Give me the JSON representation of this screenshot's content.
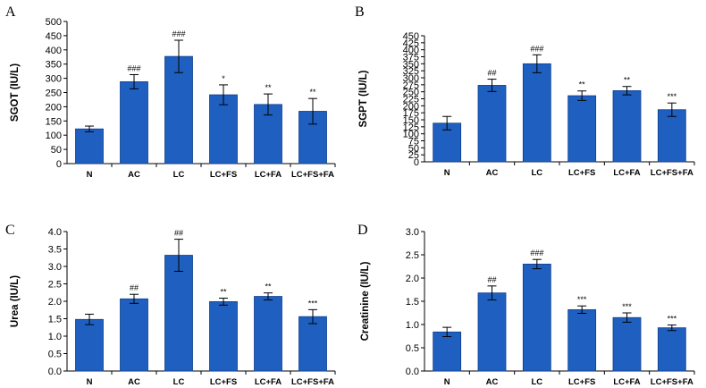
{
  "chart_data": [
    {
      "panel": "A",
      "type": "bar",
      "ylabel": "SGOT (IU/L)",
      "ylim": [
        0,
        500
      ],
      "yticks": [
        0,
        50,
        100,
        150,
        200,
        250,
        300,
        350,
        400,
        450,
        500
      ],
      "categories": [
        "N",
        "AC",
        "LC",
        "LC+FS",
        "LC+FA",
        "LC+FS+FA"
      ],
      "values": [
        122,
        288,
        377,
        242,
        208,
        184
      ],
      "errors": [
        10,
        25,
        57,
        35,
        37,
        45
      ],
      "annotations": [
        "",
        "###",
        "###",
        "*",
        "**",
        "**"
      ]
    },
    {
      "panel": "B",
      "type": "bar",
      "ylabel": "SGPT (IU/L)",
      "ylim": [
        0,
        450
      ],
      "yticks": [
        0,
        25,
        50,
        75,
        100,
        125,
        150,
        175,
        200,
        225,
        250,
        275,
        300,
        325,
        350,
        375,
        400,
        425,
        450
      ],
      "categories": [
        "N",
        "AC",
        "LC",
        "LC+FS",
        "LC+FA",
        "LC+FS+FA"
      ],
      "values": [
        138,
        273,
        350,
        236,
        254,
        186
      ],
      "errors": [
        24,
        22,
        32,
        17,
        15,
        24
      ],
      "annotations": [
        "",
        "##",
        "###",
        "**",
        "**",
        "***"
      ]
    },
    {
      "panel": "C",
      "type": "bar",
      "ylabel": "Urea (IU/L)",
      "ylim": [
        0,
        4.0
      ],
      "yticks": [
        "0.0",
        "0.5",
        "1.0",
        "1.5",
        "2.0",
        "2.5",
        "3.0",
        "3.5",
        "4.0"
      ],
      "categories": [
        "N",
        "AC",
        "LC",
        "LC+FS",
        "LC+FA",
        "LC+FS+FA"
      ],
      "values": [
        1.48,
        2.07,
        3.32,
        1.99,
        2.14,
        1.56
      ],
      "errors": [
        0.15,
        0.13,
        0.46,
        0.1,
        0.1,
        0.2
      ],
      "annotations": [
        "",
        "##",
        "##",
        "**",
        "**",
        "***"
      ]
    },
    {
      "panel": "D",
      "type": "bar",
      "ylabel": "Creatinine (IU/L)",
      "ylim": [
        0,
        3.0
      ],
      "yticks": [
        "0.0",
        "0.5",
        "1.0",
        "1.5",
        "2.0",
        "2.5",
        "3.0"
      ],
      "categories": [
        "N",
        "AC",
        "LC",
        "LC+FS",
        "LC+FA",
        "LC+FS+FA"
      ],
      "values": [
        0.84,
        1.68,
        2.3,
        1.32,
        1.15,
        0.93
      ],
      "errors": [
        0.1,
        0.15,
        0.1,
        0.08,
        0.1,
        0.06
      ],
      "annotations": [
        "",
        "##",
        "###",
        "***",
        "***",
        "***"
      ]
    }
  ],
  "colors": {
    "bar_fill": "#1f5fbf",
    "bar_stroke": "#0f3f8f",
    "axis": "#000000"
  }
}
